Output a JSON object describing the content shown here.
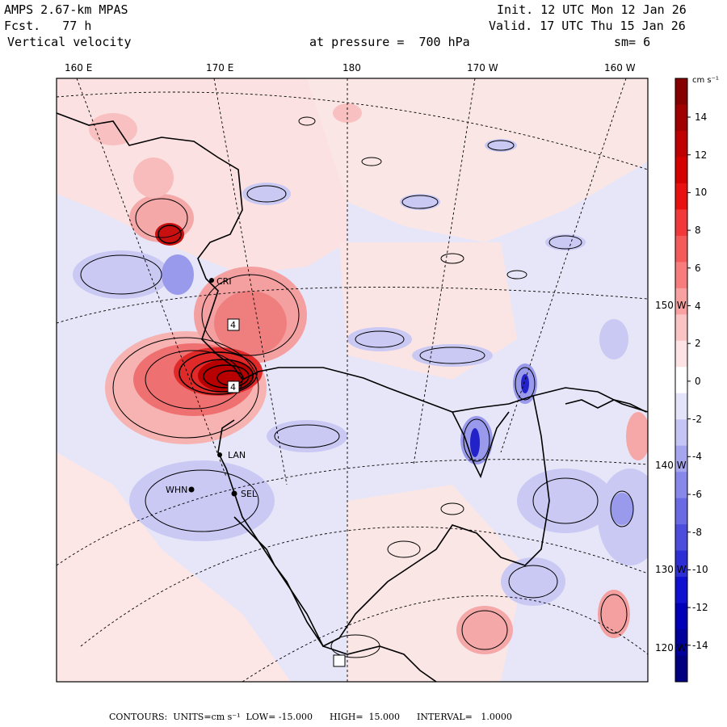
{
  "header": {
    "model": "AMPS 2.67-km MPAS",
    "forecast": "Fcst.   77 h",
    "variable": "Vertical velocity",
    "init": "Init. 12 UTC Mon 12 Jan 26",
    "valid": "Valid. 17 UTC Thu 15 Jan 26",
    "level": "at pressure =  700 hPa",
    "smoothing": "sm= 6"
  },
  "longitude_labels": [
    "160 E",
    "170 E",
    "180",
    "170 W",
    "160 W"
  ],
  "latitude_labels": [
    "150 W",
    "140 W",
    "130 W",
    "120 W"
  ],
  "stations": [
    "CRI",
    "LAN",
    "WHN",
    "SEL"
  ],
  "colorbar": {
    "units": "cm s⁻¹",
    "ticks": [
      "14",
      "12",
      "10",
      "8",
      "6",
      "4",
      "2",
      "0",
      "-2",
      "-4",
      "-6",
      "-8",
      "-10",
      "-12",
      "-14"
    ],
    "colors": [
      "#870000",
      "#a10000",
      "#bf0000",
      "#d40000",
      "#e81010",
      "#f23838",
      "#f55a5a",
      "#f87c7c",
      "#f9a0a0",
      "#fbc4c4",
      "#fde3e3",
      "#ffffff",
      "#e3e3fa",
      "#c5c5f5",
      "#a6a6ef",
      "#8888ea",
      "#6a6ae4",
      "#4c4cdd",
      "#2e2ed6",
      "#1010d0",
      "#0000b8",
      "#00009c",
      "#000080"
    ]
  },
  "footer": "CONTOURS:  UNITS=cm s⁻¹  LOW= -15.000      HIGH=  15.000      INTERVAL=   1.0000",
  "colors": {
    "background_pos": "#fbe3e3",
    "background_neg": "#e3e3fa"
  }
}
